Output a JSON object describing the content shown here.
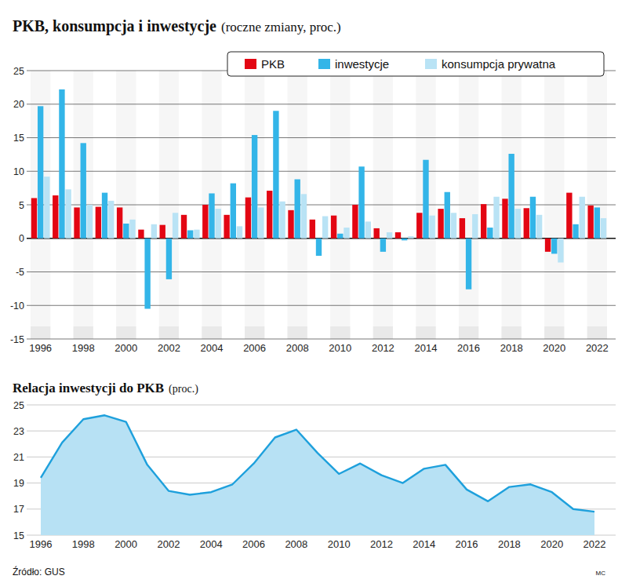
{
  "chart_data": [
    {
      "type": "bar",
      "title": "PKB, konsumpcja i inwestycje",
      "subtitle": "(roczne zmiany, proc.)",
      "categories": [
        "1996",
        null,
        "1998",
        null,
        "2000",
        null,
        "2002",
        null,
        "2004",
        null,
        "2006",
        null,
        "2008",
        null,
        "2010",
        null,
        "2012",
        null,
        "2014",
        null,
        "2016",
        null,
        "2018",
        null,
        "2020",
        null,
        "2022"
      ],
      "series": [
        {
          "name": "PKB",
          "color": "#e30613",
          "values": [
            6.0,
            6.4,
            4.6,
            4.7,
            4.6,
            1.3,
            2.0,
            3.5,
            5.0,
            3.5,
            6.1,
            7.1,
            4.2,
            2.8,
            3.4,
            5.0,
            1.5,
            0.9,
            3.8,
            4.4,
            3.0,
            5.1,
            5.9,
            4.5,
            -2.0,
            6.8,
            4.9
          ]
        },
        {
          "name": "inwestycje",
          "color": "#33b5e8",
          "values": [
            19.7,
            22.2,
            14.2,
            6.8,
            2.2,
            -10.5,
            -6.1,
            1.2,
            6.7,
            8.2,
            15.4,
            19.0,
            8.8,
            -2.6,
            0.7,
            10.7,
            -2.0,
            -0.3,
            11.7,
            6.9,
            -7.6,
            1.6,
            12.6,
            6.2,
            -2.3,
            2.1,
            4.6
          ]
        },
        {
          "name": "konsumpcja prywatna",
          "color": "#b9e3f5",
          "values": [
            9.2,
            7.3,
            5.0,
            5.6,
            2.8,
            2.1,
            3.8,
            1.3,
            4.4,
            1.8,
            4.6,
            5.5,
            6.6,
            3.3,
            1.6,
            2.5,
            0.9,
            0.3,
            3.4,
            3.8,
            3.6,
            6.2,
            4.4,
            3.5,
            -3.6,
            6.2,
            3.0
          ]
        }
      ],
      "ylim": [
        -15,
        25
      ],
      "yticks": [
        -15,
        -10,
        -5,
        0,
        5,
        10,
        15,
        20,
        25
      ],
      "grid": true,
      "legend": "top-right"
    },
    {
      "type": "area",
      "title": "Relacja inwestycji do PKB",
      "subtitle": "(proc.)",
      "categories": [
        "1996",
        null,
        "1998",
        null,
        "2000",
        null,
        "2002",
        null,
        "2004",
        null,
        "2006",
        null,
        "2008",
        null,
        "2010",
        null,
        "2012",
        null,
        "2014",
        null,
        "2016",
        null,
        "2018",
        null,
        "2020",
        null,
        "2022"
      ],
      "series": [
        {
          "name": "Relacja inwestycji do PKB",
          "color": "#1ea0dc",
          "values": [
            19.4,
            22.1,
            23.9,
            24.2,
            23.7,
            20.4,
            18.4,
            18.1,
            18.3,
            18.9,
            20.5,
            22.5,
            23.1,
            21.3,
            19.7,
            20.5,
            19.6,
            19.0,
            20.1,
            20.4,
            18.5,
            17.6,
            18.7,
            18.9,
            18.3,
            17.0,
            16.8
          ]
        }
      ],
      "ylim": [
        15,
        25
      ],
      "yticks": [
        15,
        17,
        19,
        21,
        23,
        25
      ],
      "grid": true
    }
  ],
  "source": "Źródło: GUS",
  "credit": "MC"
}
